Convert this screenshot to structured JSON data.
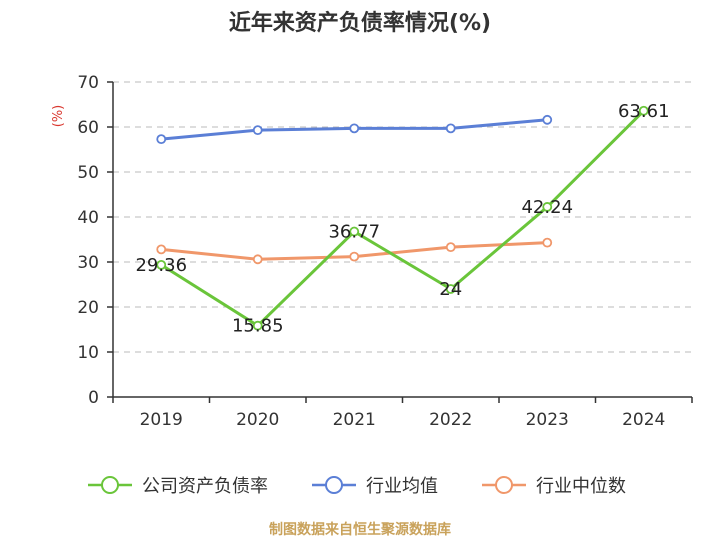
{
  "chart_data": {
    "type": "line",
    "title": "近年来资产负债率情况(%)",
    "ylabel": "(%)",
    "xlabel": "",
    "categories": [
      "2019",
      "2020",
      "2021",
      "2022",
      "2023",
      "2024"
    ],
    "ylim": [
      0,
      70
    ],
    "yticks": [
      0,
      10,
      20,
      30,
      40,
      50,
      60,
      70
    ],
    "grid": true,
    "legend_position": "bottom",
    "series": [
      {
        "name": "公司资产负债率",
        "color": "#6ac53a",
        "values": [
          29.36,
          15.85,
          36.77,
          24,
          42.24,
          63.61
        ],
        "labels": [
          "29.36",
          "15.85",
          "36.77",
          "24",
          "42.24",
          "63.61"
        ]
      },
      {
        "name": "行业均值",
        "color": "#5b7fd6",
        "values": [
          57.3,
          59.3,
          59.7,
          59.7,
          61.6,
          null
        ]
      },
      {
        "name": "行业中位数",
        "color": "#f0976a",
        "values": [
          32.8,
          30.6,
          31.2,
          33.3,
          34.3,
          null
        ]
      }
    ]
  },
  "source": "制图数据来自恒生聚源数据库"
}
